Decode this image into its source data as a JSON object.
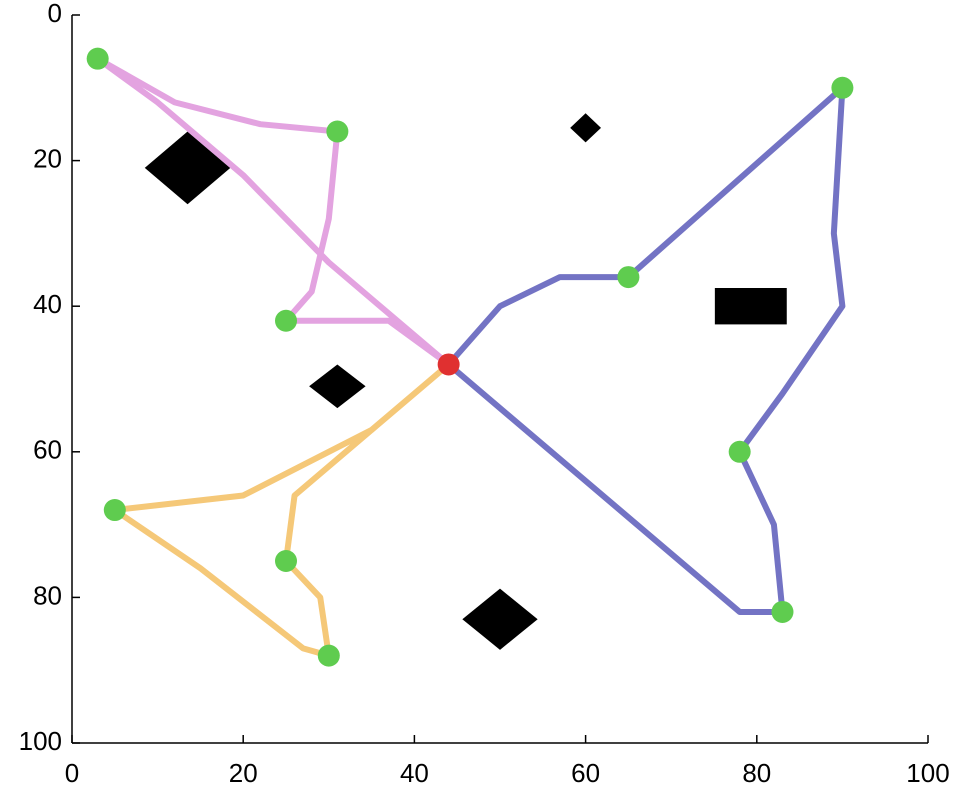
{
  "chart_data": {
    "type": "line",
    "xlim": [
      0,
      100
    ],
    "ylim": [
      0,
      100
    ],
    "y_inverted": true,
    "xticks": [
      0,
      20,
      40,
      60,
      80,
      100
    ],
    "yticks": [
      0,
      20,
      40,
      60,
      80,
      100
    ],
    "series": [
      {
        "color": "#e3a3e0",
        "x": [
          44,
          37,
          25,
          28,
          30,
          31,
          22,
          12,
          3,
          10,
          20,
          30,
          44
        ],
        "y": [
          48,
          42,
          42,
          38,
          28,
          16,
          15,
          12,
          6,
          12,
          22,
          34,
          48
        ]
      },
      {
        "color": "#f5c878",
        "x": [
          44,
          35,
          20,
          5,
          15,
          27,
          30,
          29,
          25,
          26,
          44
        ],
        "y": [
          48,
          57,
          66,
          68,
          76,
          87,
          88,
          80,
          75,
          66,
          48
        ]
      },
      {
        "color": "#7373c4",
        "x": [
          44,
          50,
          57,
          65,
          90,
          89,
          90,
          83,
          78,
          82,
          83,
          78,
          44
        ],
        "y": [
          48,
          40,
          36,
          36,
          10,
          30,
          40,
          52,
          60,
          70,
          82,
          82,
          48
        ]
      }
    ],
    "points": {
      "color": "#5fcc4f",
      "x": [
        3,
        31,
        25,
        65,
        90,
        78,
        83,
        5,
        25,
        30
      ],
      "y": [
        6,
        16,
        42,
        36,
        10,
        60,
        82,
        68,
        75,
        88
      ]
    },
    "depot": {
      "color": "#e03030",
      "x": 44,
      "y": 48
    },
    "obstacles": {
      "color": "#000000",
      "items": [
        {
          "shape": "diamond",
          "x": 13.5,
          "y": 21,
          "w": 5,
          "h": 5
        },
        {
          "shape": "diamond",
          "x": 60,
          "y": 15.5,
          "w": 1.8,
          "h": 2
        },
        {
          "shape": "diamond",
          "x": 31,
          "y": 51,
          "w": 3.3,
          "h": 3
        },
        {
          "shape": "diamond",
          "x": 50,
          "y": 83,
          "w": 4.4,
          "h": 4.2
        },
        {
          "shape": "rect",
          "x": 79.3,
          "y": 40,
          "w": 4.2,
          "h": 2.5
        }
      ]
    }
  }
}
